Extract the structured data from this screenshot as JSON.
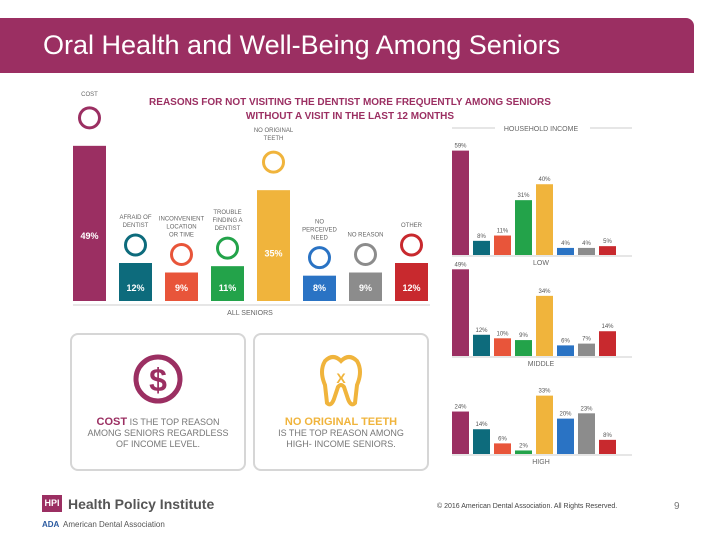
{
  "slide": {
    "title": "Oral Health and Well-Being Among Seniors",
    "page_number": "9"
  },
  "footer": {
    "hpi_badge": "HPI",
    "institute": "Health Policy Institute",
    "ada_badge": "ADA",
    "ada_name": "American Dental Association",
    "copyright": "© 2016 American Dental Association. All Rights Reserved."
  },
  "infographic": {
    "title_line1": "REASONS FOR NOT VISITING THE DENTIST MORE FREQUENTLY AMONG SENIORS",
    "title_line2": "WITHOUT A VISIT IN THE LAST 12 MONTHS"
  },
  "callouts": {
    "cost": {
      "bold": "COST",
      "text1": "IS THE TOP REASON",
      "text2": "AMONG SENIORS REGARDLESS",
      "text3": "OF INCOME LEVEL."
    },
    "teeth": {
      "bold": "NO ORIGINAL TEETH",
      "text1": "IS THE TOP REASON AMONG",
      "text2": "HIGH- INCOME SENIORS."
    }
  },
  "colors": {
    "cost": "#9b2f62",
    "afraid": "#0d6b7c",
    "inconvenient": "#e8553a",
    "trouble": "#23a34a",
    "no_teeth": "#f0b43c",
    "no_need": "#2a73c4",
    "no_reason": "#8c8c8c",
    "other": "#c8292e"
  },
  "chart_data": [
    {
      "type": "bar",
      "title": "ALL SENIORS",
      "categories": [
        "COST",
        "AFRAID OF DENTIST",
        "INCONVENIENT LOCATION OR TIME",
        "TROUBLE FINDING A DENTIST",
        "NO ORIGINAL TEETH",
        "NO PERCEIVED NEED",
        "NO REASON",
        "OTHER"
      ],
      "label_lines": [
        [
          "COST"
        ],
        [
          "AFRAID OF",
          "DENTIST"
        ],
        [
          "INCONVENIENT",
          "LOCATION",
          "OR TIME"
        ],
        [
          "TROUBLE",
          "FINDING A",
          "DENTIST"
        ],
        [
          "NO ORIGINAL",
          "TEETH"
        ],
        [
          "NO",
          "PERCEIVED",
          "NEED"
        ],
        [
          "NO REASON"
        ],
        [
          "OTHER"
        ]
      ],
      "values": [
        49,
        12,
        9,
        11,
        35,
        8,
        9,
        12
      ],
      "value_labels": [
        "49%",
        "12%",
        "9%",
        "11%",
        "35%",
        "8%",
        "9%",
        "12%"
      ],
      "ylim": [
        0,
        60
      ]
    },
    {
      "type": "bar",
      "title": "HOUSEHOLD INCOME",
      "panels": [
        {
          "name": "LOW",
          "values": [
            59,
            8,
            11,
            31,
            40,
            4,
            4,
            5
          ],
          "value_labels": [
            "59%",
            "8%",
            "11%",
            "31%",
            "40%",
            "4%",
            "4%",
            "5%"
          ]
        },
        {
          "name": "MIDDLE",
          "values": [
            49,
            12,
            10,
            9,
            34,
            6,
            7,
            14
          ],
          "value_labels": [
            "49%",
            "12%",
            "10%",
            "9%",
            "34%",
            "6%",
            "7%",
            "14%"
          ]
        },
        {
          "name": "HIGH",
          "values": [
            24,
            14,
            6,
            2,
            33,
            20,
            23,
            8
          ],
          "value_labels": [
            "24%",
            "14%",
            "6%",
            "2%",
            "33%",
            "20%",
            "23%",
            "8%"
          ]
        }
      ],
      "ylim": [
        0,
        65
      ]
    }
  ]
}
